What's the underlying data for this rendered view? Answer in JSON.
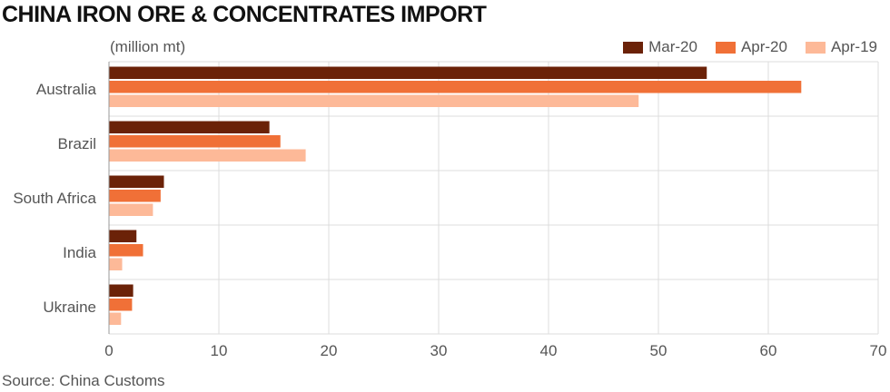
{
  "title": "CHINA IRON ORE & CONCENTRATES IMPORT",
  "unit_label": "(million mt)",
  "source": "Source: China Customs",
  "chart_data": {
    "type": "bar",
    "orientation": "horizontal",
    "categories": [
      "Australia",
      "Brazil",
      "South Africa",
      "India",
      "Ukraine"
    ],
    "series": [
      {
        "name": "Mar-20",
        "color": "#6b2208",
        "values": [
          54.4,
          14.6,
          5.0,
          2.5,
          2.2
        ]
      },
      {
        "name": "Apr-20",
        "color": "#f07037",
        "values": [
          63.0,
          15.6,
          4.7,
          3.1,
          2.1
        ]
      },
      {
        "name": "Apr-19",
        "color": "#fdb998",
        "values": [
          48.2,
          17.9,
          4.0,
          1.2,
          1.1
        ]
      }
    ],
    "xlim": [
      0,
      70
    ],
    "xticks": [
      0,
      10,
      20,
      30,
      40,
      50,
      60,
      70
    ],
    "grid": true,
    "legend_position": "top-right"
  }
}
